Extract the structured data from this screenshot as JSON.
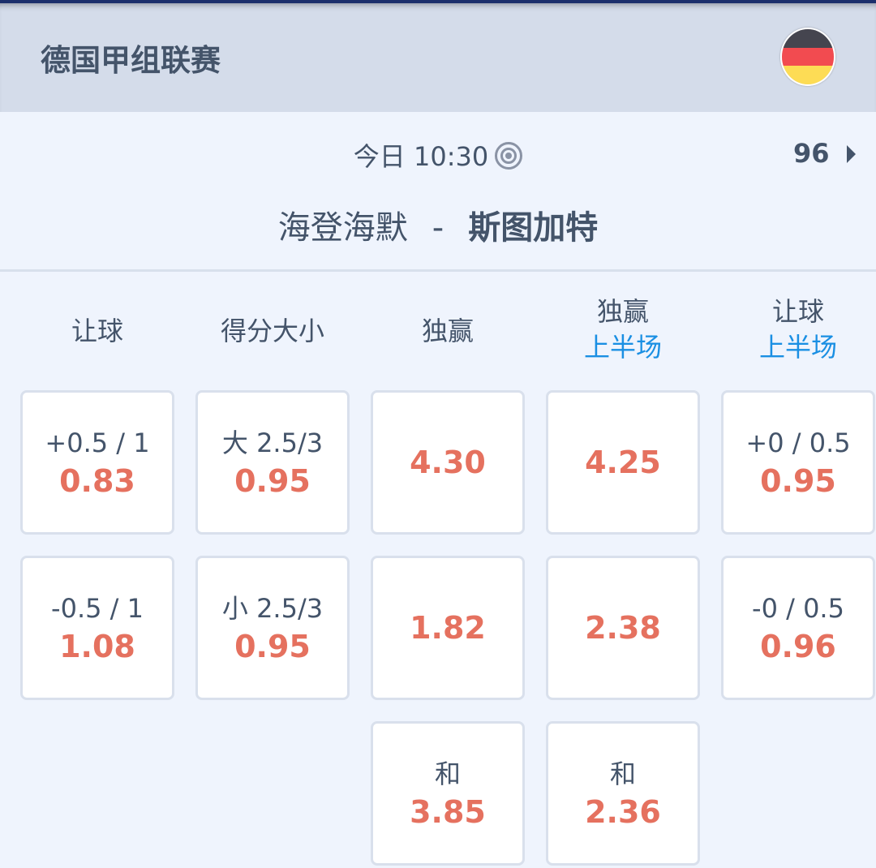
{
  "header": {
    "league": "德国甲组联赛",
    "flag_icon": "germany-flag-icon",
    "flag_colors": [
      "#45454f",
      "#f24b50",
      "#fddc55"
    ]
  },
  "match": {
    "time": "今日 10:30",
    "more_count": "96",
    "home": "海登海默",
    "separator": "-",
    "away": "斯图加特"
  },
  "columns": [
    {
      "title": "让球",
      "sub": ""
    },
    {
      "title": "得分大小",
      "sub": ""
    },
    {
      "title": "独赢",
      "sub": ""
    },
    {
      "title": "独赢",
      "sub": "上半场"
    },
    {
      "title": "让球",
      "sub": "上半场"
    }
  ],
  "cells": [
    [
      {
        "label": "+0.5 / 1",
        "odd": "0.83"
      },
      {
        "label": "-0.5 / 1",
        "odd": "1.08"
      }
    ],
    [
      {
        "label": "大 2.5/3",
        "odd": "0.95"
      },
      {
        "label": "小 2.5/3",
        "odd": "0.95"
      }
    ],
    [
      {
        "label": "",
        "odd": "4.30"
      },
      {
        "label": "",
        "odd": "1.82"
      },
      {
        "label": "和",
        "odd": "3.85"
      }
    ],
    [
      {
        "label": "",
        "odd": "4.25"
      },
      {
        "label": "",
        "odd": "2.38"
      },
      {
        "label": "和",
        "odd": "2.36"
      }
    ],
    [
      {
        "label": "+0 / 0.5",
        "odd": "0.95"
      },
      {
        "label": "-0 / 0.5",
        "odd": "0.96"
      }
    ]
  ],
  "colors": {
    "odd": "#e5715f",
    "accent": "#1a8fe3",
    "text": "#44546a"
  }
}
